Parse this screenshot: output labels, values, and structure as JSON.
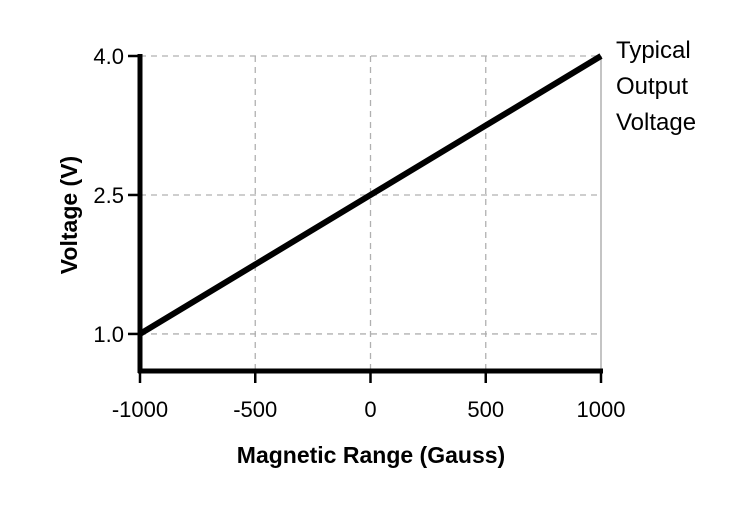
{
  "chart_data": {
    "type": "line",
    "title": "",
    "xlabel": "Magnetic Range (Gauss)",
    "ylabel": "Voltage (V)",
    "xlim": [
      -1000,
      1000
    ],
    "ylim": [
      0.6,
      4.0
    ],
    "x_ticks": [
      -1000,
      -500,
      0,
      500,
      1000
    ],
    "x_tick_labels": [
      "-1000",
      "-500",
      "0",
      "500",
      "1000"
    ],
    "y_ticks": [
      1.0,
      2.5,
      4.0
    ],
    "y_tick_labels": [
      "1.0",
      "2.5",
      "4.0"
    ],
    "grid": true,
    "grid_style": "dashed",
    "series": [
      {
        "name": "",
        "x": [
          -1000,
          -500,
          0,
          500,
          1000
        ],
        "y": [
          1.0,
          1.75,
          2.5,
          3.25,
          4.0
        ]
      }
    ],
    "annotation_lines": [
      "Typical",
      "Output",
      "Voltage"
    ],
    "colors": {
      "line": "#000000",
      "grid": "#b0b0b0",
      "axis": "#000000"
    }
  }
}
